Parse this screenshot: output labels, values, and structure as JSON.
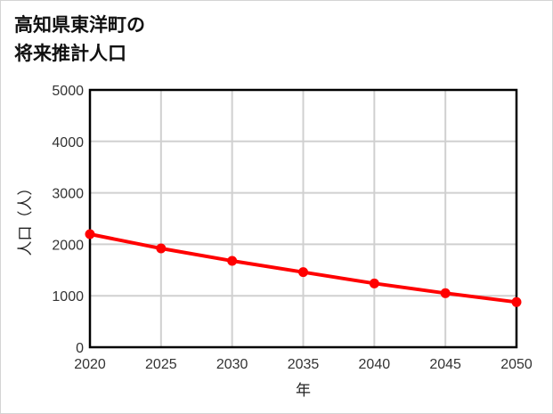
{
  "title_line1": "高知県東洋町の",
  "title_line2": "将来推計人口",
  "chart_data": {
    "type": "line",
    "title": "高知県東洋町の将来推計人口",
    "xlabel": "年",
    "ylabel": "人口（人）",
    "x": [
      2020,
      2025,
      2030,
      2035,
      2040,
      2045,
      2050
    ],
    "series": [
      {
        "name": "人口",
        "values": [
          2197,
          1920,
          1678,
          1459,
          1240,
          1050,
          877
        ],
        "color": "#ff0000"
      }
    ],
    "xlim": [
      2020,
      2050
    ],
    "ylim": [
      0,
      5000
    ],
    "yticks": [
      0,
      1000,
      2000,
      3000,
      4000,
      5000
    ],
    "xticks": [
      2020,
      2025,
      2030,
      2035,
      2040,
      2045,
      2050
    ],
    "grid": true,
    "legend": "none"
  },
  "colors": {
    "line": "#ff0000",
    "grid": "#d0d0d0",
    "axis": "#000000"
  }
}
